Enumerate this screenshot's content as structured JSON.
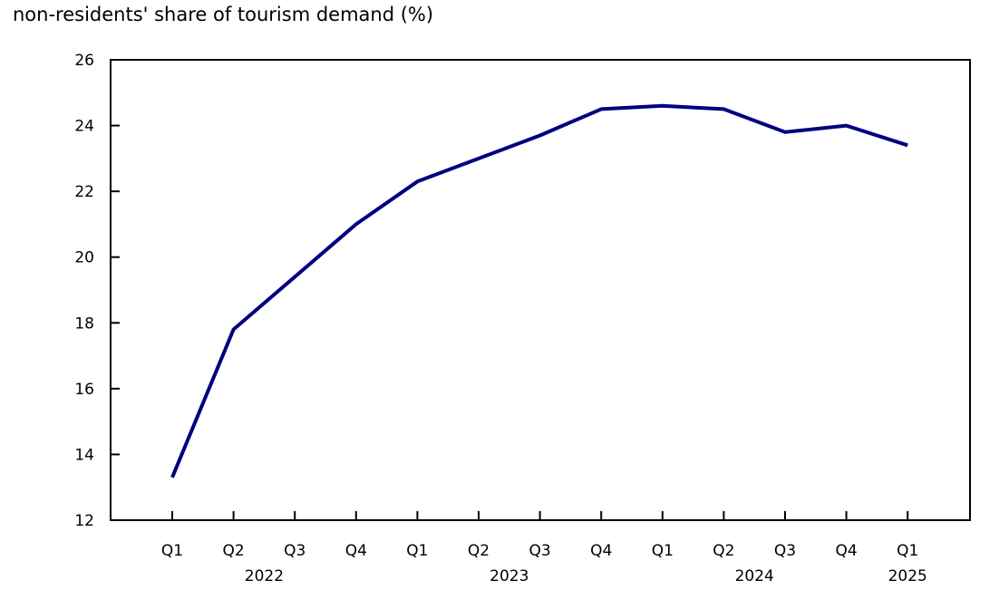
{
  "chart_data": {
    "type": "line",
    "title": "non-residents' share of tourism demand (%)",
    "xlabel": "",
    "ylabel": "",
    "ylim": [
      12,
      26
    ],
    "yticks": [
      12,
      14,
      16,
      18,
      20,
      22,
      24,
      26
    ],
    "grid": false,
    "legend": null,
    "categories": [
      "Q1 2022",
      "Q2 2022",
      "Q3 2022",
      "Q4 2022",
      "Q1 2023",
      "Q2 2023",
      "Q3 2023",
      "Q4 2023",
      "Q1 2024",
      "Q2 2024",
      "Q3 2024",
      "Q4 2024",
      "Q1 2025"
    ],
    "quarter_labels": [
      "Q1",
      "Q2",
      "Q3",
      "Q4",
      "Q1",
      "Q2",
      "Q3",
      "Q4",
      "Q1",
      "Q2",
      "Q3",
      "Q4",
      "Q1"
    ],
    "year_labels": [
      {
        "label": "2022",
        "center_index": 1.5
      },
      {
        "label": "2023",
        "center_index": 5.5
      },
      {
        "label": "2024",
        "center_index": 9.5
      },
      {
        "label": "2025",
        "center_index": 12
      }
    ],
    "series": [
      {
        "name": "non-residents' share of tourism demand",
        "color": "#000080",
        "values": [
          13.3,
          17.8,
          19.4,
          21.0,
          22.3,
          23.0,
          23.7,
          24.5,
          24.6,
          24.5,
          23.8,
          24.0,
          23.4
        ]
      }
    ]
  },
  "colors": {
    "line": "#000080",
    "axis": "#000000",
    "background": "#ffffff"
  }
}
